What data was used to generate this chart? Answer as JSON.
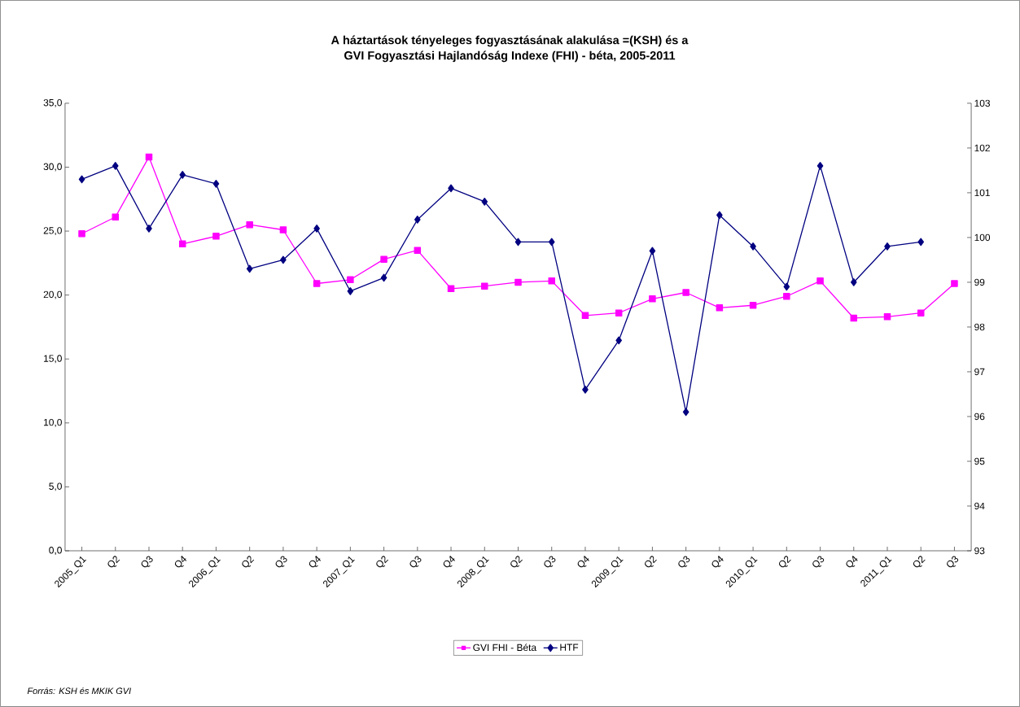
{
  "chart_data": {
    "type": "line",
    "title": "A háztartások tényeleges fogyasztásának alakulása =(KSH) és a\nGVI Fogyasztási Hajlandóság Indexe (FHI) - béta, 2005-2011",
    "categories": [
      "2005_Q1",
      "Q2",
      "Q3",
      "Q4",
      "2006_Q1",
      "Q2",
      "Q3",
      "Q4",
      "2007_Q1",
      "Q2",
      "Q3",
      "Q4",
      "2008_Q1",
      "Q2",
      "Q3",
      "Q4",
      "2009_Q1",
      "Q2",
      "Q3",
      "Q4",
      "2010_Q1",
      "Q2",
      "Q3",
      "Q4",
      "2011_Q1",
      "Q2",
      "Q3"
    ],
    "series": [
      {
        "name": "GVI FHI - Béta",
        "color": "#ff00ff",
        "marker": "square",
        "values": [
          24.8,
          26.1,
          30.8,
          24.0,
          24.6,
          25.5,
          25.1,
          20.9,
          21.2,
          22.8,
          23.5,
          20.5,
          20.7,
          21.0,
          21.1,
          18.4,
          18.6,
          19.7,
          20.2,
          19.0,
          19.2,
          19.9,
          21.1,
          18.2,
          18.3,
          18.6,
          20.9
        ]
      },
      {
        "name": "HTF",
        "color": "#000080",
        "marker": "diamond",
        "axis": "y2",
        "values": [
          101.3,
          101.6,
          100.2,
          101.4,
          101.2,
          99.3,
          99.5,
          100.2,
          98.8,
          99.1,
          100.4,
          101.1,
          100.8,
          99.9,
          99.9,
          96.6,
          97.7,
          99.7,
          96.1,
          100.5,
          99.8,
          98.9,
          101.6,
          99.0,
          99.8,
          99.9,
          null
        ]
      }
    ],
    "ylim": [
      0,
      35
    ],
    "yticks": [
      {
        "value": 0,
        "label": "0,0"
      },
      {
        "value": 5,
        "label": "5,0"
      },
      {
        "value": 10,
        "label": "10,0"
      },
      {
        "value": 15,
        "label": "15,0"
      },
      {
        "value": 20,
        "label": "20,0"
      },
      {
        "value": 25,
        "label": "25,0"
      },
      {
        "value": 30,
        "label": "30,0"
      },
      {
        "value": 35,
        "label": "35,0"
      }
    ],
    "y2lim": [
      93,
      103
    ],
    "y2ticks": [
      93,
      94,
      95,
      96,
      97,
      98,
      99,
      100,
      101,
      102,
      103
    ],
    "legend": "bottom",
    "line_style": "solid",
    "annotations": [
      "Forrás: KSH és MKIK GVI"
    ]
  }
}
